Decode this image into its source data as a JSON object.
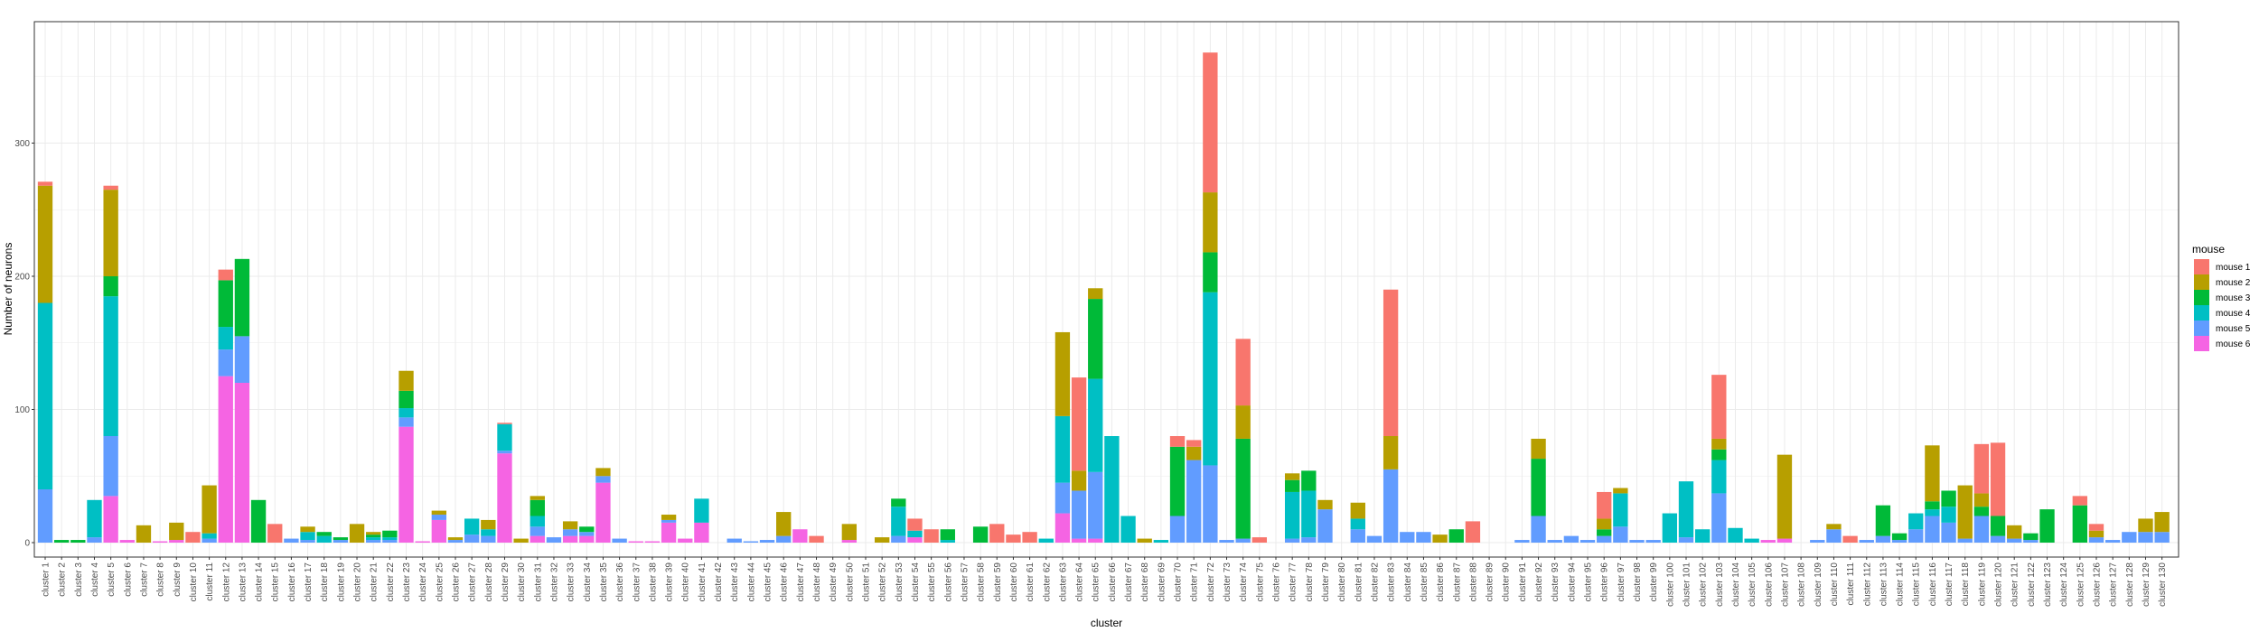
{
  "chart_data": {
    "type": "bar",
    "stacked": true,
    "xlabel": "cluster",
    "ylabel": "Number of neurons",
    "ylim": [
      0,
      390
    ],
    "yticks": [
      0,
      100,
      200,
      300
    ],
    "grid": true,
    "legend": {
      "title": "mouse",
      "placement": "right"
    },
    "categories": [
      "cluster 1",
      "cluster 2",
      "cluster 3",
      "cluster 4",
      "cluster 5",
      "cluster 6",
      "cluster 7",
      "cluster 8",
      "cluster 9",
      "cluster 10",
      "cluster 11",
      "cluster 12",
      "cluster 13",
      "cluster 14",
      "cluster 15",
      "cluster 16",
      "cluster 17",
      "cluster 18",
      "cluster 19",
      "cluster 20",
      "cluster 21",
      "cluster 22",
      "cluster 23",
      "cluster 24",
      "cluster 25",
      "cluster 26",
      "cluster 27",
      "cluster 28",
      "cluster 29",
      "cluster 30",
      "cluster 31",
      "cluster 32",
      "cluster 33",
      "cluster 34",
      "cluster 35",
      "cluster 36",
      "cluster 37",
      "cluster 38",
      "cluster 39",
      "cluster 40",
      "cluster 41",
      "cluster 42",
      "cluster 43",
      "cluster 44",
      "cluster 45",
      "cluster 46",
      "cluster 47",
      "cluster 48",
      "cluster 49",
      "cluster 50",
      "cluster 51",
      "cluster 52",
      "cluster 53",
      "cluster 54",
      "cluster 55",
      "cluster 56",
      "cluster 57",
      "cluster 58",
      "cluster 59",
      "cluster 60",
      "cluster 61",
      "cluster 62",
      "cluster 63",
      "cluster 64",
      "cluster 65",
      "cluster 66",
      "cluster 67",
      "cluster 68",
      "cluster 69",
      "cluster 70",
      "cluster 71",
      "cluster 72",
      "cluster 73",
      "cluster 74",
      "cluster 75",
      "cluster 76",
      "cluster 77",
      "cluster 78",
      "cluster 79",
      "cluster 80",
      "cluster 81",
      "cluster 82",
      "cluster 83",
      "cluster 84",
      "cluster 85",
      "cluster 86",
      "cluster 87",
      "cluster 88",
      "cluster 89",
      "cluster 90",
      "cluster 91",
      "cluster 92",
      "cluster 93",
      "cluster 94",
      "cluster 95",
      "cluster 96",
      "cluster 97",
      "cluster 98",
      "cluster 99",
      "cluster 100",
      "cluster 101",
      "cluster 102",
      "cluster 103",
      "cluster 104",
      "cluster 105",
      "cluster 106",
      "cluster 107",
      "cluster 108",
      "cluster 109",
      "cluster 110",
      "cluster 111",
      "cluster 112",
      "cluster 113",
      "cluster 114",
      "cluster 115",
      "cluster 116",
      "cluster 117",
      "cluster 118",
      "cluster 119",
      "cluster 120",
      "cluster 121",
      "cluster 122",
      "cluster 123",
      "cluster 124",
      "cluster 125",
      "cluster 126",
      "cluster 127",
      "cluster 128",
      "cluster 129",
      "cluster 130"
    ],
    "series": [
      {
        "name": "mouse 1",
        "color": "#F8766D",
        "values": [
          3,
          0,
          0,
          0,
          3,
          0,
          0,
          0,
          0,
          8,
          0,
          8,
          0,
          0,
          14,
          0,
          0,
          0,
          0,
          0,
          0,
          0,
          0,
          0,
          0,
          0,
          0,
          0,
          1,
          0,
          0,
          0,
          0,
          0,
          0,
          0,
          0,
          0,
          0,
          0,
          0,
          0,
          0,
          0,
          0,
          0,
          0,
          5,
          0,
          0,
          0,
          0,
          0,
          9,
          10,
          0,
          0,
          0,
          14,
          6,
          8,
          0,
          0,
          70,
          0,
          0,
          0,
          0,
          0,
          8,
          5,
          105,
          0,
          50,
          4,
          0,
          0,
          0,
          0,
          0,
          0,
          0,
          110,
          0,
          0,
          0,
          0,
          16,
          0,
          0,
          0,
          0,
          0,
          0,
          0,
          20,
          0,
          0,
          0,
          0,
          0,
          0,
          48,
          0,
          0,
          0,
          0,
          0,
          0,
          0,
          5,
          0,
          0,
          0,
          0,
          0,
          0,
          0,
          37,
          55,
          0,
          0,
          0,
          0,
          7,
          5,
          0,
          0,
          0,
          0
        ]
      },
      {
        "name": "mouse 2",
        "color": "#B79F00",
        "values": [
          88,
          0,
          0,
          0,
          65,
          0,
          13,
          0,
          13,
          0,
          36,
          0,
          0,
          0,
          0,
          0,
          4,
          0,
          0,
          14,
          2,
          0,
          15,
          0,
          3,
          2,
          0,
          7,
          0,
          3,
          3,
          0,
          6,
          0,
          6,
          0,
          0,
          0,
          4,
          0,
          0,
          0,
          0,
          0,
          0,
          18,
          0,
          0,
          0,
          12,
          0,
          4,
          0,
          0,
          0,
          0,
          0,
          0,
          0,
          0,
          0,
          0,
          63,
          15,
          8,
          0,
          0,
          3,
          0,
          0,
          10,
          45,
          0,
          25,
          0,
          0,
          5,
          0,
          7,
          0,
          12,
          0,
          25,
          0,
          0,
          6,
          0,
          0,
          0,
          0,
          0,
          15,
          0,
          0,
          0,
          8,
          4,
          0,
          0,
          0,
          0,
          0,
          8,
          0,
          0,
          0,
          63,
          0,
          0,
          4,
          0,
          0,
          0,
          0,
          0,
          42,
          0,
          40,
          10,
          0,
          10,
          0,
          0,
          0,
          0,
          5,
          0,
          0,
          10,
          15
        ]
      },
      {
        "name": "mouse 3",
        "color": "#00BA38",
        "values": [
          0,
          2,
          2,
          0,
          15,
          0,
          0,
          0,
          0,
          0,
          0,
          35,
          58,
          32,
          0,
          0,
          0,
          3,
          2,
          0,
          2,
          5,
          13,
          0,
          0,
          0,
          0,
          0,
          0,
          0,
          12,
          0,
          0,
          4,
          0,
          0,
          0,
          0,
          0,
          0,
          0,
          0,
          0,
          0,
          0,
          0,
          0,
          0,
          0,
          0,
          0,
          0,
          6,
          0,
          0,
          8,
          0,
          12,
          0,
          0,
          0,
          0,
          0,
          0,
          60,
          0,
          0,
          0,
          0,
          52,
          0,
          30,
          0,
          75,
          0,
          0,
          9,
          15,
          0,
          0,
          0,
          0,
          0,
          0,
          0,
          0,
          10,
          0,
          0,
          0,
          0,
          43,
          0,
          0,
          0,
          5,
          0,
          0,
          0,
          0,
          0,
          0,
          8,
          0,
          0,
          0,
          0,
          0,
          0,
          0,
          0,
          0,
          23,
          5,
          0,
          6,
          12,
          0,
          7,
          15,
          0,
          5,
          25,
          0,
          28,
          0,
          0,
          0,
          0,
          0
        ]
      },
      {
        "name": "mouse 4",
        "color": "#00BFC4",
        "values": [
          140,
          0,
          0,
          28,
          105,
          0,
          0,
          0,
          0,
          0,
          4,
          17,
          0,
          0,
          0,
          0,
          6,
          5,
          0,
          0,
          2,
          2,
          7,
          0,
          0,
          0,
          12,
          5,
          20,
          0,
          8,
          0,
          0,
          0,
          0,
          0,
          0,
          0,
          0,
          0,
          18,
          0,
          0,
          0,
          0,
          0,
          0,
          0,
          0,
          0,
          0,
          0,
          22,
          5,
          0,
          2,
          0,
          0,
          0,
          0,
          0,
          3,
          50,
          0,
          70,
          80,
          20,
          0,
          2,
          0,
          0,
          130,
          0,
          0,
          0,
          0,
          35,
          35,
          0,
          0,
          8,
          0,
          0,
          0,
          0,
          0,
          0,
          0,
          0,
          0,
          0,
          0,
          0,
          0,
          0,
          0,
          25,
          0,
          0,
          22,
          42,
          10,
          25,
          11,
          3,
          0,
          0,
          0,
          0,
          0,
          0,
          0,
          0,
          0,
          12,
          5,
          12,
          0,
          0,
          0,
          0,
          0,
          0,
          0,
          0,
          0,
          0,
          0,
          0,
          0
        ]
      },
      {
        "name": "mouse 5",
        "color": "#619CFF",
        "values": [
          40,
          0,
          0,
          4,
          45,
          0,
          0,
          0,
          0,
          0,
          3,
          20,
          35,
          0,
          0,
          3,
          2,
          0,
          2,
          0,
          2,
          2,
          7,
          0,
          4,
          2,
          6,
          5,
          2,
          0,
          7,
          4,
          5,
          3,
          5,
          3,
          0,
          0,
          2,
          0,
          0,
          0,
          3,
          1,
          2,
          5,
          0,
          0,
          0,
          0,
          0,
          0,
          5,
          0,
          0,
          0,
          0,
          0,
          0,
          0,
          0,
          0,
          23,
          36,
          50,
          0,
          0,
          0,
          0,
          20,
          62,
          58,
          2,
          3,
          0,
          0,
          3,
          4,
          25,
          0,
          10,
          5,
          55,
          8,
          8,
          0,
          0,
          0,
          0,
          0,
          2,
          20,
          2,
          5,
          2,
          5,
          12,
          2,
          2,
          0,
          4,
          0,
          37,
          0,
          0,
          0,
          0,
          0,
          2,
          10,
          0,
          2,
          5,
          2,
          10,
          20,
          15,
          3,
          20,
          5,
          3,
          2,
          0,
          0,
          0,
          4,
          2,
          8,
          8,
          8
        ]
      },
      {
        "name": "mouse 6",
        "color": "#F564E3",
        "values": [
          0,
          0,
          0,
          0,
          35,
          2,
          0,
          1,
          2,
          0,
          0,
          125,
          120,
          0,
          0,
          0,
          0,
          0,
          0,
          0,
          0,
          0,
          87,
          1,
          17,
          0,
          0,
          0,
          67,
          0,
          5,
          0,
          5,
          5,
          45,
          0,
          1,
          1,
          15,
          3,
          15,
          0,
          0,
          0,
          0,
          0,
          10,
          0,
          0,
          2,
          0,
          0,
          0,
          4,
          0,
          0,
          0,
          0,
          0,
          0,
          0,
          0,
          22,
          3,
          3,
          0,
          0,
          0,
          0,
          0,
          0,
          0,
          0,
          0,
          0,
          0,
          0,
          0,
          0,
          0,
          0,
          0,
          0,
          0,
          0,
          0,
          0,
          0,
          0,
          0,
          0,
          0,
          0,
          0,
          0,
          0,
          0,
          0,
          0,
          0,
          0,
          0,
          0,
          0,
          0,
          2,
          3,
          0,
          0,
          0,
          0,
          0,
          0,
          0,
          0,
          0,
          0,
          0,
          0,
          0,
          0,
          0,
          0,
          0,
          0,
          0,
          0,
          0,
          0,
          0
        ]
      }
    ]
  }
}
